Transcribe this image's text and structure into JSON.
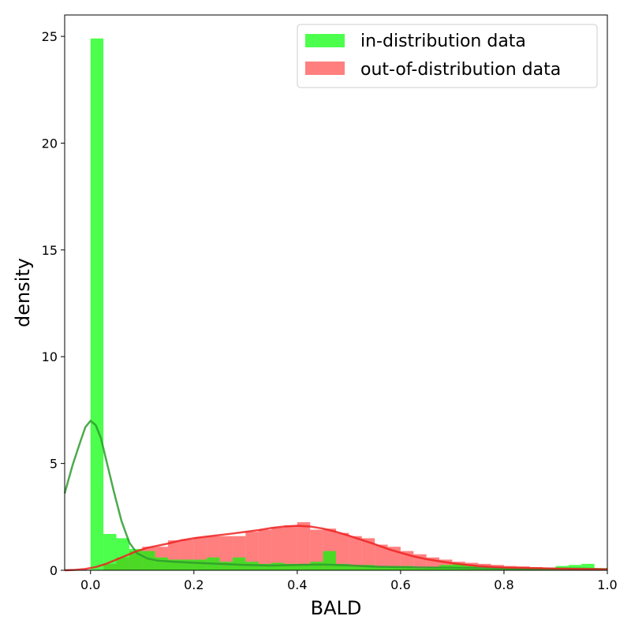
{
  "chart_data": {
    "type": "histogram",
    "xlabel": "BALD",
    "ylabel": "density",
    "xlim": [
      -0.05,
      1.0
    ],
    "ylim": [
      0,
      26
    ],
    "x_ticks": [
      "0.0",
      "0.2",
      "0.4",
      "0.6",
      "0.8",
      "1.0"
    ],
    "x_tick_values": [
      0.0,
      0.2,
      0.4,
      0.6,
      0.8,
      1.0
    ],
    "y_ticks": [
      "0",
      "5",
      "10",
      "15",
      "20",
      "25"
    ],
    "y_tick_values": [
      0,
      5,
      10,
      15,
      20,
      25
    ],
    "legend_position": "upper-right",
    "bin_width": 0.025,
    "bin_starts": [
      0.0,
      0.025,
      0.05,
      0.075,
      0.1,
      0.125,
      0.15,
      0.175,
      0.2,
      0.225,
      0.25,
      0.275,
      0.3,
      0.325,
      0.35,
      0.375,
      0.4,
      0.425,
      0.45,
      0.475,
      0.5,
      0.525,
      0.55,
      0.575,
      0.6,
      0.625,
      0.65,
      0.675,
      0.7,
      0.725,
      0.75,
      0.775,
      0.8,
      0.825,
      0.85,
      0.875,
      0.9,
      0.925,
      0.95,
      0.975
    ],
    "series": [
      {
        "name": "in-distribution data",
        "color": "#00ff00",
        "kde_color": "#2e9b2e",
        "values": [
          24.9,
          1.7,
          1.5,
          1.0,
          0.9,
          0.6,
          0.5,
          0.5,
          0.5,
          0.6,
          0.4,
          0.6,
          0.4,
          0.3,
          0.35,
          0.3,
          0.3,
          0.4,
          0.9,
          0.3,
          0.2,
          0.25,
          0.2,
          0.2,
          0.2,
          0.1,
          0.15,
          0.25,
          0.3,
          0.2,
          0.1,
          0.1,
          0.1,
          0.1,
          0.1,
          0.1,
          0.2,
          0.25,
          0.3,
          0.1
        ],
        "kde": [
          [
            -0.05,
            3.6
          ],
          [
            -0.035,
            4.9
          ],
          [
            -0.02,
            6.0
          ],
          [
            -0.01,
            6.7
          ],
          [
            0.0,
            7.0
          ],
          [
            0.01,
            6.8
          ],
          [
            0.02,
            6.2
          ],
          [
            0.03,
            5.2
          ],
          [
            0.045,
            3.7
          ],
          [
            0.06,
            2.3
          ],
          [
            0.075,
            1.3
          ],
          [
            0.09,
            0.8
          ],
          [
            0.11,
            0.55
          ],
          [
            0.13,
            0.45
          ],
          [
            0.16,
            0.4
          ],
          [
            0.2,
            0.35
          ],
          [
            0.25,
            0.3
          ],
          [
            0.3,
            0.25
          ],
          [
            0.35,
            0.22
          ],
          [
            0.4,
            0.25
          ],
          [
            0.45,
            0.27
          ],
          [
            0.5,
            0.23
          ],
          [
            0.55,
            0.17
          ],
          [
            0.6,
            0.15
          ],
          [
            0.65,
            0.13
          ],
          [
            0.7,
            0.12
          ],
          [
            0.75,
            0.1
          ],
          [
            0.8,
            0.08
          ],
          [
            0.85,
            0.07
          ],
          [
            0.9,
            0.08
          ],
          [
            0.95,
            0.08
          ],
          [
            1.0,
            0.05
          ]
        ]
      },
      {
        "name": "out-of-distribution data",
        "color": "#ff0000",
        "kde_color": "#ee2222",
        "values": [
          0.0,
          0.3,
          0.6,
          0.9,
          1.1,
          1.1,
          1.4,
          1.45,
          1.55,
          1.6,
          1.6,
          1.6,
          1.8,
          1.9,
          2.0,
          2.1,
          2.25,
          1.9,
          1.95,
          1.75,
          1.6,
          1.5,
          1.2,
          1.1,
          0.9,
          0.75,
          0.6,
          0.5,
          0.4,
          0.35,
          0.3,
          0.25,
          0.2,
          0.18,
          0.15,
          0.12,
          0.1,
          0.08,
          0.06,
          0.05
        ],
        "kde": [
          [
            -0.05,
            0.0
          ],
          [
            -0.03,
            0.02
          ],
          [
            -0.01,
            0.06
          ],
          [
            0.01,
            0.15
          ],
          [
            0.03,
            0.3
          ],
          [
            0.05,
            0.5
          ],
          [
            0.07,
            0.7
          ],
          [
            0.09,
            0.9
          ],
          [
            0.11,
            1.05
          ],
          [
            0.13,
            1.15
          ],
          [
            0.15,
            1.25
          ],
          [
            0.175,
            1.4
          ],
          [
            0.2,
            1.5
          ],
          [
            0.225,
            1.58
          ],
          [
            0.25,
            1.65
          ],
          [
            0.275,
            1.72
          ],
          [
            0.3,
            1.8
          ],
          [
            0.325,
            1.88
          ],
          [
            0.35,
            1.98
          ],
          [
            0.375,
            2.05
          ],
          [
            0.4,
            2.08
          ],
          [
            0.425,
            2.05
          ],
          [
            0.45,
            1.95
          ],
          [
            0.475,
            1.8
          ],
          [
            0.5,
            1.62
          ],
          [
            0.525,
            1.42
          ],
          [
            0.55,
            1.22
          ],
          [
            0.575,
            1.0
          ],
          [
            0.6,
            0.82
          ],
          [
            0.625,
            0.65
          ],
          [
            0.65,
            0.52
          ],
          [
            0.675,
            0.42
          ],
          [
            0.7,
            0.33
          ],
          [
            0.725,
            0.26
          ],
          [
            0.75,
            0.2
          ],
          [
            0.775,
            0.16
          ],
          [
            0.8,
            0.13
          ],
          [
            0.85,
            0.1
          ],
          [
            0.9,
            0.08
          ],
          [
            0.95,
            0.06
          ],
          [
            1.0,
            0.04
          ]
        ]
      }
    ]
  }
}
